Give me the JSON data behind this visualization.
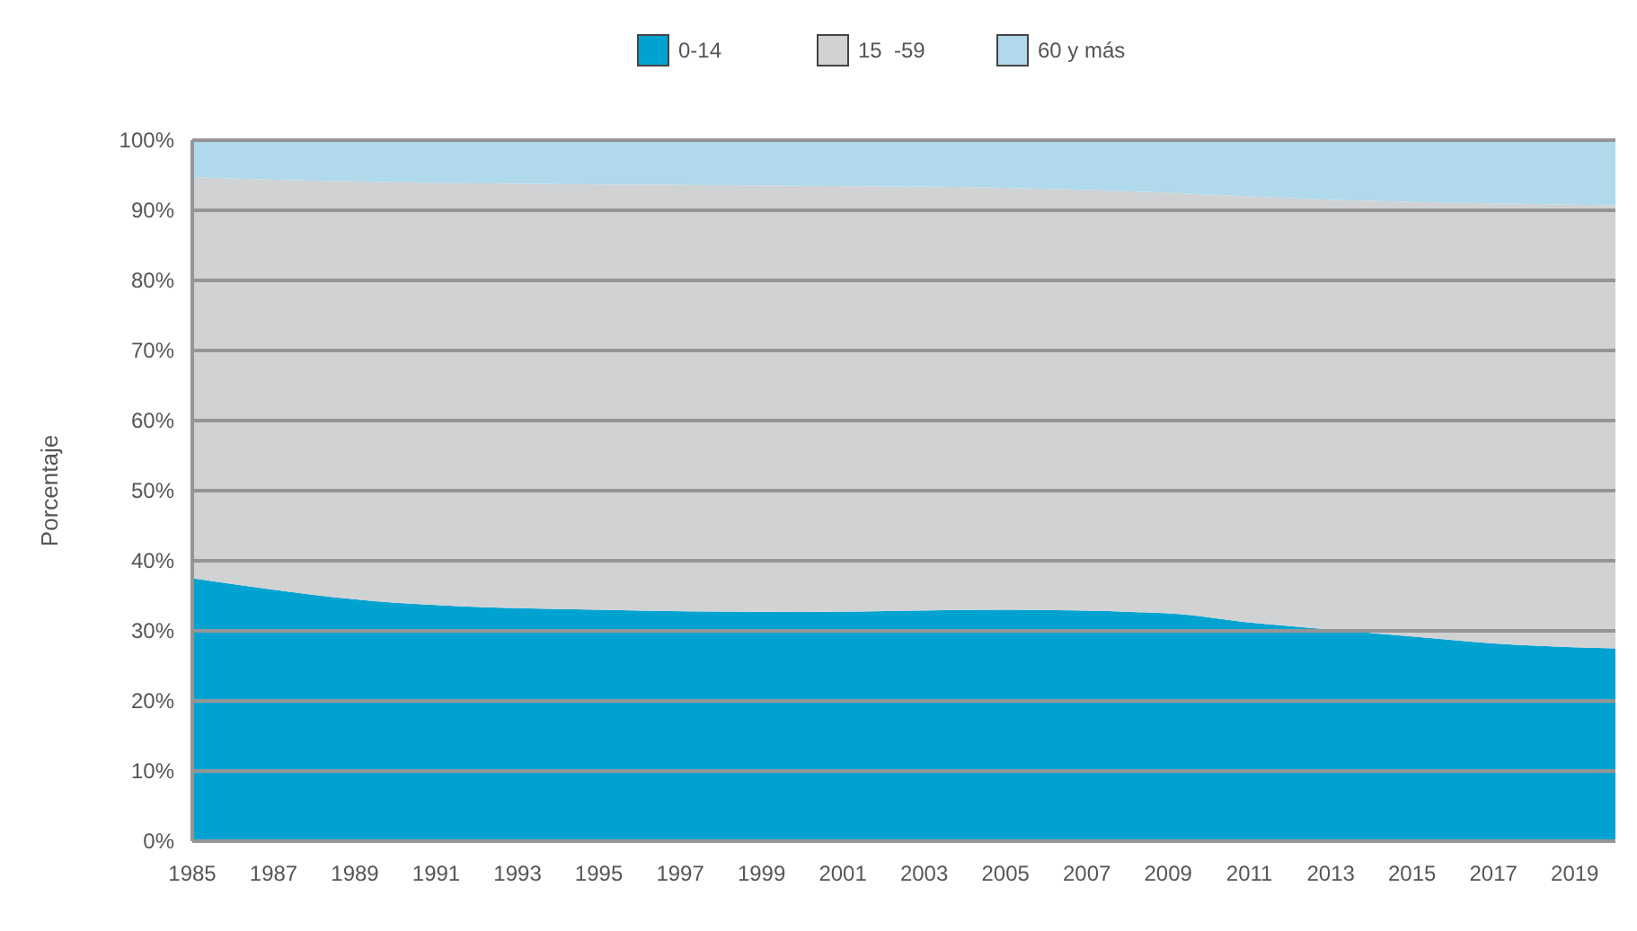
{
  "chart_data": {
    "type": "area",
    "stacked": true,
    "ylabel": "Porcentaje",
    "legend": "top",
    "grid": "y",
    "x": [
      1985,
      1990,
      1995,
      2000,
      2005,
      2009,
      2011,
      2013,
      2015,
      2017,
      2020
    ],
    "xlim": [
      1985,
      2020
    ],
    "xticks": [
      1985,
      1987,
      1989,
      1991,
      1993,
      1995,
      1997,
      1999,
      2001,
      2003,
      2005,
      2007,
      2009,
      2011,
      2013,
      2015,
      2017,
      2019
    ],
    "ylim": [
      0,
      100
    ],
    "yticks": [
      {
        "value": 0,
        "label": "0%"
      },
      {
        "value": 10,
        "label": "10%"
      },
      {
        "value": 20,
        "label": "20%"
      },
      {
        "value": 30,
        "label": "30%"
      },
      {
        "value": 40,
        "label": "40%"
      },
      {
        "value": 50,
        "label": "50%"
      },
      {
        "value": 60,
        "label": "60%"
      },
      {
        "value": 70,
        "label": "70%"
      },
      {
        "value": 80,
        "label": "80%"
      },
      {
        "value": 90,
        "label": "90%"
      },
      {
        "value": 100,
        "label": "100%"
      }
    ],
    "series": [
      {
        "name": "0-14",
        "color": "#00a3d0",
        "values": [
          37.5,
          34,
          33,
          32.7,
          33,
          32.5,
          31.2,
          30.2,
          29.2,
          28.2,
          27.5
        ]
      },
      {
        "name": "15  -59",
        "color": "#d1d2d4",
        "values": [
          57.2,
          60,
          60.7,
          60.8,
          60.2,
          60,
          60.8,
          61.3,
          62,
          62.8,
          63.2
        ]
      },
      {
        "name": "60 y más",
        "color": "#b0d9ec",
        "values": [
          5.3,
          6,
          6.3,
          6.5,
          6.8,
          7.5,
          8,
          8.5,
          8.8,
          9,
          9.3
        ]
      }
    ]
  }
}
